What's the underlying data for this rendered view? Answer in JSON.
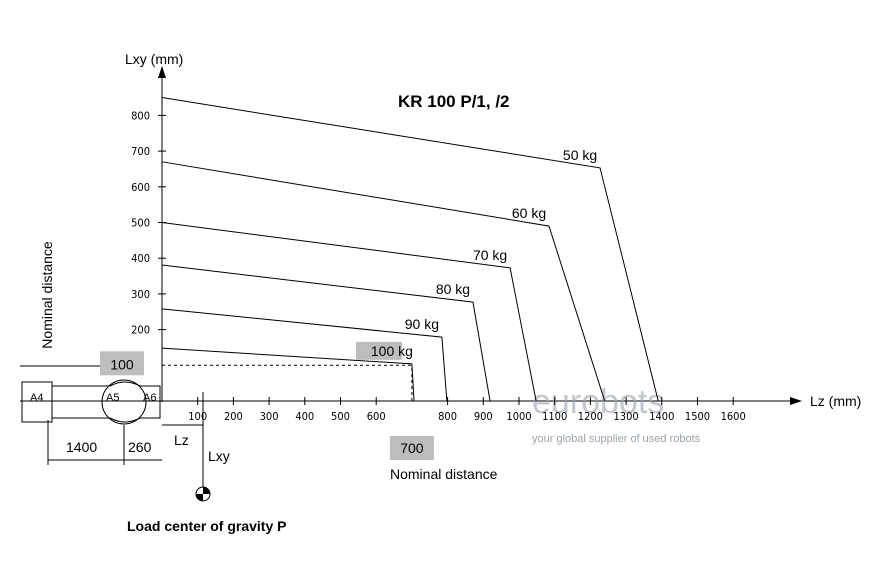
{
  "chart_data": {
    "type": "line",
    "title": "KR 100 P/1, /2",
    "x_label": "Lz (mm)",
    "y_label": "Lxy (mm)",
    "xlim": [
      0,
      1800
    ],
    "ylim": [
      0,
      900
    ],
    "xticks": [
      100,
      200,
      300,
      400,
      500,
      600,
      800,
      900,
      1000,
      1100,
      1200,
      1300,
      1400,
      1500,
      1600
    ],
    "yticks": [
      200,
      300,
      400,
      500,
      600,
      700,
      800
    ],
    "series": [
      {
        "name": "50 kg",
        "color": "#000000",
        "x": [
          0,
          1227,
          1390
        ],
        "values": [
          850,
          653,
          0
        ]
      },
      {
        "name": "60 kg",
        "color": "#000000",
        "x": [
          0,
          1084,
          1240
        ],
        "values": [
          670,
          490,
          0
        ]
      },
      {
        "name": "70 kg",
        "color": "#000000",
        "x": [
          0,
          975,
          1048
        ],
        "values": [
          500,
          373,
          0
        ]
      },
      {
        "name": "80 kg",
        "color": "#000000",
        "x": [
          0,
          871,
          919
        ],
        "values": [
          381,
          277,
          0
        ]
      },
      {
        "name": "90 kg",
        "color": "#000000",
        "x": [
          0,
          784,
          798
        ],
        "values": [
          258,
          179,
          0
        ]
      },
      {
        "name": "100 kg",
        "color": "#000000",
        "x": [
          0,
          700,
          706
        ],
        "values": [
          148,
          104,
          0
        ]
      }
    ],
    "nominal_y": {
      "value": 100,
      "label": "100"
    },
    "nominal_x": {
      "value": 700,
      "label": "700"
    },
    "nominal_label_x": "Nominal distance",
    "nominal_label_y": "Nominal distance",
    "dimensions": [
      "1400",
      "260"
    ],
    "axes_labels": [
      "A4",
      "A5",
      "A6"
    ],
    "lz_mark": "Lz",
    "lxy_mark": "Lxy",
    "footer": "Load center of gravity P",
    "watermark": "eurobots",
    "watermark_tagline": "your global supplier of used robots"
  }
}
